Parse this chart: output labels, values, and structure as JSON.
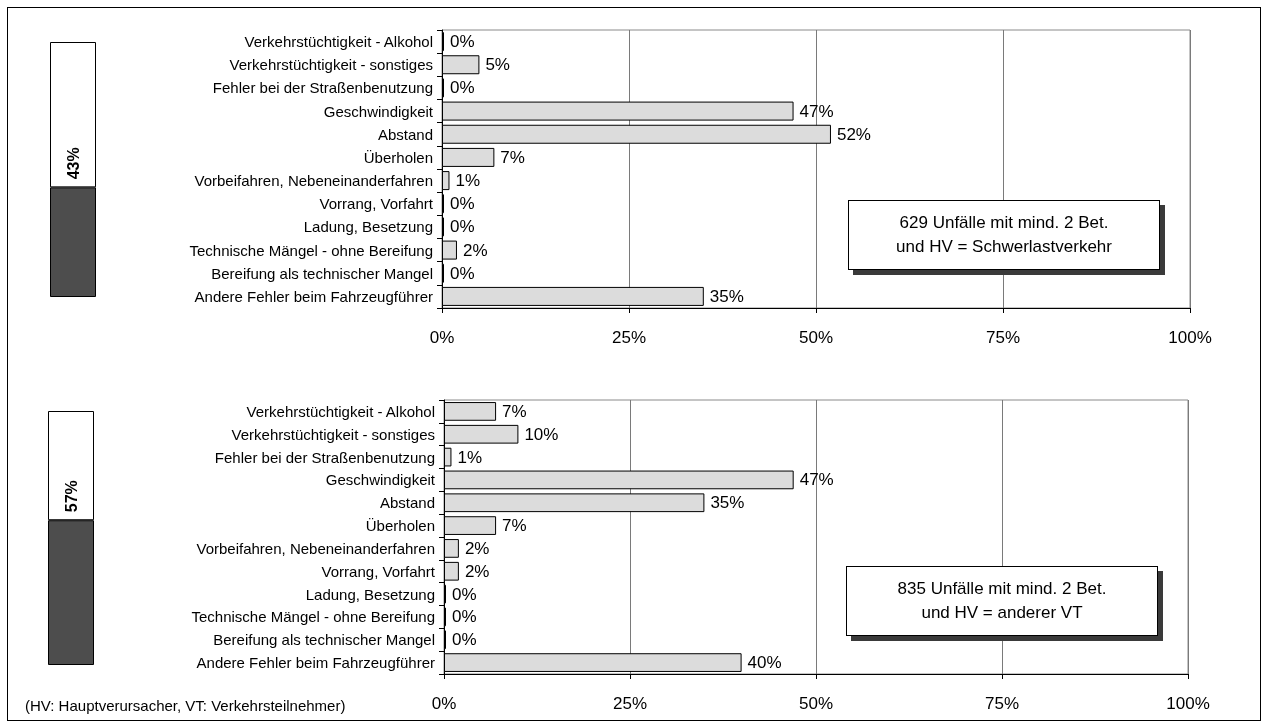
{
  "chart_data": [
    {
      "type": "bar",
      "stacked": true,
      "categories": [
        null
      ],
      "series": [
        {
          "color": "#4d4d4d",
          "values": [
            43
          ],
          "value_labels": [
            "43%"
          ]
        },
        {
          "color": "#ffffff",
          "values": [
            57
          ]
        }
      ]
    },
    {
      "type": "bar",
      "orientation": "horizontal",
      "categories": [
        "Verkehrstüchtigkeit - Alkohol",
        "Verkehrstüchtigkeit - sonstiges",
        "Fehler bei der Straßenbenutzung",
        "Geschwindigkeit",
        "Abstand",
        "Überholen",
        "Vorbeifahren, Nebeneinanderfahren",
        "Vorrang, Vorfahrt",
        "Ladung, Besetzung",
        "Technische Mängel - ohne Bereifung",
        "Bereifung als technischer Mangel",
        "Andere Fehler beim Fahrzeugführer"
      ],
      "values": [
        0,
        5,
        0,
        47,
        52,
        7,
        1,
        0,
        0,
        2,
        0,
        35
      ],
      "value_labels": [
        "0%",
        "5%",
        "0%",
        "47%",
        "52%",
        "7%",
        "1%",
        "0%",
        "0%",
        "2%",
        "0%",
        "35%"
      ],
      "color": "#dcdcdc",
      "xlim": [
        0,
        100
      ],
      "xticks": [
        {
          "value": 0,
          "label": "0%"
        },
        {
          "value": 25,
          "label": "25%"
        },
        {
          "value": 50,
          "label": "50%"
        },
        {
          "value": 75,
          "label": "75%"
        },
        {
          "value": 100,
          "label": "100%"
        }
      ],
      "grid": "x",
      "annotations": [
        "629 Unfälle mit mind. 2 Bet.\nund HV = Schwerlastverkehr"
      ]
    },
    {
      "type": "bar",
      "stacked": true,
      "categories": [
        null
      ],
      "series": [
        {
          "color": "#4d4d4d",
          "values": [
            57
          ],
          "value_labels": [
            "57%"
          ]
        },
        {
          "color": "#ffffff",
          "values": [
            43
          ]
        }
      ]
    },
    {
      "type": "bar",
      "orientation": "horizontal",
      "categories": [
        "Verkehrstüchtigkeit - Alkohol",
        "Verkehrstüchtigkeit - sonstiges",
        "Fehler bei der Straßenbenutzung",
        "Geschwindigkeit",
        "Abstand",
        "Überholen",
        "Vorbeifahren, Nebeneinanderfahren",
        "Vorrang, Vorfahrt",
        "Ladung, Besetzung",
        "Technische Mängel - ohne Bereifung",
        "Bereifung als technischer Mangel",
        "Andere Fehler beim Fahrzeugführer"
      ],
      "values": [
        7,
        10,
        1,
        47,
        35,
        7,
        2,
        2,
        0,
        0,
        0,
        40
      ],
      "value_labels": [
        "7%",
        "10%",
        "1%",
        "47%",
        "35%",
        "7%",
        "2%",
        "2%",
        "0%",
        "0%",
        "0%",
        "40%"
      ],
      "color": "#dcdcdc",
      "xlim": [
        0,
        100
      ],
      "xticks": [
        {
          "value": 0,
          "label": "0%"
        },
        {
          "value": 25,
          "label": "25%"
        },
        {
          "value": 50,
          "label": "50%"
        },
        {
          "value": 75,
          "label": "75%"
        },
        {
          "value": 100,
          "label": "100%"
        }
      ],
      "grid": "x",
      "annotations": [
        "835 Unfälle mit mind. 2 Bet.\nund HV = anderer VT",
        "(HV: Hauptverursacher, VT: Verkehrsteilnehmer)"
      ]
    }
  ]
}
